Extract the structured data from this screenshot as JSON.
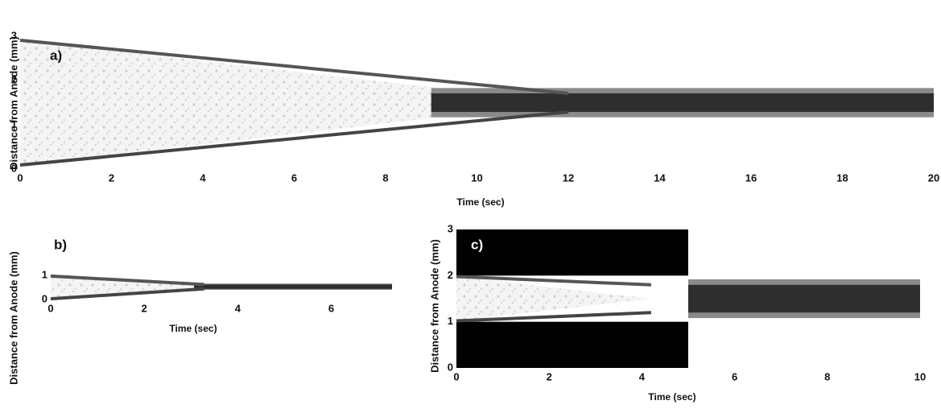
{
  "chart_data": [
    {
      "type": "band",
      "panel_label": "a)",
      "xlabel": "Time (sec)",
      "ylabel": "Distance from Anode (mm)",
      "xlim": [
        0,
        20
      ],
      "xticks": [
        0,
        2,
        4,
        6,
        8,
        10,
        12,
        14,
        16,
        18,
        20
      ],
      "ylim": [
        0,
        3
      ],
      "yticks": [
        0,
        1,
        2,
        3
      ]
    },
    {
      "type": "band",
      "panel_label": "b)",
      "xlabel": "Time (sec)",
      "ylabel": "Distance from Anode (mm)",
      "xlim": [
        0,
        7.3
      ],
      "xticks": [
        0,
        2,
        4,
        6
      ],
      "ylim": [
        0,
        1
      ],
      "yticks": [
        0,
        1
      ]
    },
    {
      "type": "band",
      "panel_label": "c)",
      "xlabel": "Time (sec)",
      "ylabel": "Distance from Anode (mm)",
      "xlim": [
        0,
        10
      ],
      "xticks": [
        0,
        2,
        4,
        6,
        8,
        10
      ],
      "ylim": [
        0,
        3
      ],
      "yticks": [
        0,
        1,
        2,
        3
      ]
    }
  ]
}
